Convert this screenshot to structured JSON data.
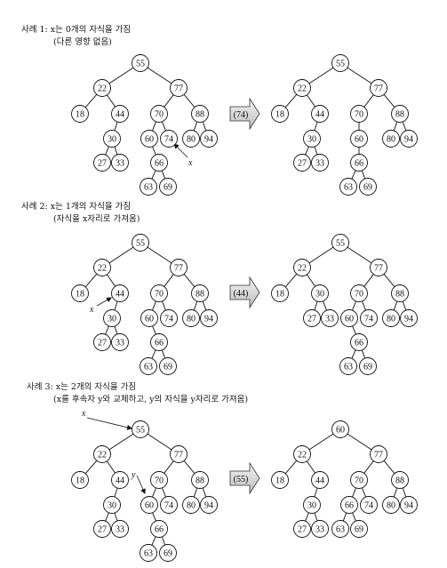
{
  "cases": [
    {
      "title": "사례 1: x는 0개의 자식을 가짐",
      "subtitle": "(다른 영향 없음)",
      "op_label": "(74)",
      "note": "x",
      "before": [
        {
          "k": "55",
          "c": [
            "22",
            "77"
          ]
        },
        {
          "k": "22",
          "c": [
            "18",
            "44"
          ]
        },
        {
          "k": "77",
          "c": [
            "70",
            "88"
          ]
        },
        {
          "k": "18",
          "c": []
        },
        {
          "k": "44",
          "c": [
            "30"
          ]
        },
        {
          "k": "70",
          "c": [
            "60",
            "74"
          ]
        },
        {
          "k": "88",
          "c": [
            "80",
            "94"
          ]
        },
        {
          "k": "30",
          "c": [
            "27",
            "33"
          ]
        },
        {
          "k": "60",
          "c": [
            "66"
          ]
        },
        {
          "k": "74",
          "c": []
        },
        {
          "k": "80",
          "c": []
        },
        {
          "k": "94",
          "c": []
        },
        {
          "k": "27",
          "c": []
        },
        {
          "k": "33",
          "c": []
        },
        {
          "k": "66",
          "c": [
            "63",
            "69"
          ]
        },
        {
          "k": "63",
          "c": []
        },
        {
          "k": "69",
          "c": []
        }
      ],
      "after": [
        {
          "k": "55",
          "c": [
            "22",
            "77"
          ]
        },
        {
          "k": "22",
          "c": [
            "18",
            "44"
          ]
        },
        {
          "k": "77",
          "c": [
            "70",
            "88"
          ]
        },
        {
          "k": "18",
          "c": []
        },
        {
          "k": "44",
          "c": [
            "30"
          ]
        },
        {
          "k": "70",
          "c": [
            "60"
          ]
        },
        {
          "k": "88",
          "c": [
            "80",
            "94"
          ]
        },
        {
          "k": "30",
          "c": [
            "27",
            "33"
          ]
        },
        {
          "k": "60",
          "c": [
            "66"
          ]
        },
        {
          "k": "80",
          "c": []
        },
        {
          "k": "94",
          "c": []
        },
        {
          "k": "27",
          "c": []
        },
        {
          "k": "33",
          "c": []
        },
        {
          "k": "66",
          "c": [
            "63",
            "69"
          ]
        },
        {
          "k": "63",
          "c": []
        },
        {
          "k": "69",
          "c": []
        }
      ]
    },
    {
      "title": "사례 2: x는 1개의 자식을 가짐",
      "subtitle": "(자식을 x자리로 가져옴)",
      "op_label": "(44)",
      "note": "x",
      "before": [
        {
          "k": "55",
          "c": [
            "22",
            "77"
          ]
        },
        {
          "k": "22",
          "c": [
            "18",
            "44"
          ]
        },
        {
          "k": "77",
          "c": [
            "70",
            "88"
          ]
        },
        {
          "k": "18",
          "c": []
        },
        {
          "k": "44",
          "c": [
            "30"
          ]
        },
        {
          "k": "70",
          "c": [
            "60",
            "74"
          ]
        },
        {
          "k": "88",
          "c": [
            "80",
            "94"
          ]
        },
        {
          "k": "30",
          "c": [
            "27",
            "33"
          ]
        },
        {
          "k": "60",
          "c": [
            "66"
          ]
        },
        {
          "k": "74",
          "c": []
        },
        {
          "k": "80",
          "c": []
        },
        {
          "k": "94",
          "c": []
        },
        {
          "k": "27",
          "c": []
        },
        {
          "k": "33",
          "c": []
        },
        {
          "k": "66",
          "c": [
            "63",
            "69"
          ]
        },
        {
          "k": "63",
          "c": []
        },
        {
          "k": "69",
          "c": []
        }
      ],
      "after": [
        {
          "k": "55",
          "c": [
            "22",
            "77"
          ]
        },
        {
          "k": "22",
          "c": [
            "18",
            "30"
          ]
        },
        {
          "k": "77",
          "c": [
            "70",
            "88"
          ]
        },
        {
          "k": "18",
          "c": []
        },
        {
          "k": "30",
          "c": [
            "27",
            "33"
          ]
        },
        {
          "k": "70",
          "c": [
            "60",
            "74"
          ]
        },
        {
          "k": "88",
          "c": [
            "80",
            "94"
          ]
        },
        {
          "k": "27",
          "c": []
        },
        {
          "k": "33",
          "c": []
        },
        {
          "k": "60",
          "c": [
            "66"
          ]
        },
        {
          "k": "74",
          "c": []
        },
        {
          "k": "80",
          "c": []
        },
        {
          "k": "94",
          "c": []
        },
        {
          "k": "66",
          "c": [
            "63",
            "69"
          ]
        },
        {
          "k": "63",
          "c": []
        },
        {
          "k": "69",
          "c": []
        }
      ]
    },
    {
      "title": "사례 3: x는 2개의 자식을 가짐",
      "subtitle": "(x를 후속자 y와 교체하고, y의 자식을 y자리로 가져옴)",
      "op_label": "(55)",
      "note": "x",
      "note2": "y",
      "before": [
        {
          "k": "55",
          "c": [
            "22",
            "77"
          ]
        },
        {
          "k": "22",
          "c": [
            "18",
            "44"
          ]
        },
        {
          "k": "77",
          "c": [
            "70",
            "88"
          ]
        },
        {
          "k": "18",
          "c": []
        },
        {
          "k": "44",
          "c": [
            "30"
          ]
        },
        {
          "k": "70",
          "c": [
            "60",
            "74"
          ]
        },
        {
          "k": "88",
          "c": [
            "80",
            "94"
          ]
        },
        {
          "k": "30",
          "c": [
            "27",
            "33"
          ]
        },
        {
          "k": "60",
          "c": [
            "66"
          ]
        },
        {
          "k": "74",
          "c": []
        },
        {
          "k": "80",
          "c": []
        },
        {
          "k": "94",
          "c": []
        },
        {
          "k": "27",
          "c": []
        },
        {
          "k": "33",
          "c": []
        },
        {
          "k": "66",
          "c": [
            "63",
            "69"
          ]
        },
        {
          "k": "63",
          "c": []
        },
        {
          "k": "69",
          "c": []
        }
      ],
      "after": [
        {
          "k": "60",
          "c": [
            "22",
            "77"
          ]
        },
        {
          "k": "22",
          "c": [
            "18",
            "44"
          ]
        },
        {
          "k": "77",
          "c": [
            "70",
            "88"
          ]
        },
        {
          "k": "18",
          "c": []
        },
        {
          "k": "44",
          "c": [
            "30"
          ]
        },
        {
          "k": "70",
          "c": [
            "66",
            "74"
          ]
        },
        {
          "k": "88",
          "c": [
            "80",
            "94"
          ]
        },
        {
          "k": "30",
          "c": [
            "27",
            "33"
          ]
        },
        {
          "k": "66",
          "c": [
            "63",
            "69"
          ]
        },
        {
          "k": "74",
          "c": []
        },
        {
          "k": "80",
          "c": []
        },
        {
          "k": "94",
          "c": []
        },
        {
          "k": "27",
          "c": []
        },
        {
          "k": "33",
          "c": []
        },
        {
          "k": "63",
          "c": []
        },
        {
          "k": "69",
          "c": []
        }
      ]
    }
  ]
}
